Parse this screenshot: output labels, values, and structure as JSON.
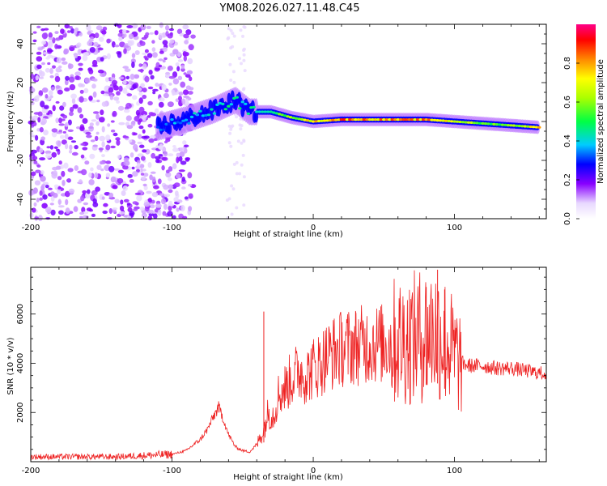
{
  "title": "YM08.2026.027.11.48.C45",
  "colors": {
    "snr_line": "#ee2222",
    "frame": "#000000",
    "background": "#ffffff"
  },
  "chart_data": [
    {
      "type": "heatmap",
      "name": "spectrogram",
      "xlabel": "Height of straight line (km)",
      "ylabel": "Frequency (Hz)",
      "xlim": [
        -200,
        165
      ],
      "ylim": [
        -50,
        50
      ],
      "x_ticks": [
        -200,
        -100,
        0,
        100
      ],
      "x_tick_labels": [
        "-200",
        "-100",
        "0",
        "100"
      ],
      "y_ticks": [
        -40,
        -20,
        0,
        20,
        40
      ],
      "y_tick_labels": [
        "-40",
        "-20",
        "0",
        "20",
        "40"
      ],
      "colorbar": {
        "label": "Normalized spectral amplitude",
        "range": [
          0,
          1
        ],
        "ticks": [
          0.0,
          0.2,
          0.4,
          0.6,
          0.8
        ],
        "tick_labels": [
          "0.0",
          "0.2",
          "0.4",
          "0.6",
          "0.8"
        ]
      },
      "ridge": [
        {
          "x": -110,
          "freq": -3,
          "amp": 0.3
        },
        {
          "x": -90,
          "freq": 1,
          "amp": 0.4
        },
        {
          "x": -70,
          "freq": 6,
          "amp": 0.42
        },
        {
          "x": -55,
          "freq": 11,
          "amp": 0.45
        },
        {
          "x": -45,
          "freq": 5,
          "amp": 0.45
        },
        {
          "x": -30,
          "freq": 5,
          "amp": 0.5
        },
        {
          "x": -15,
          "freq": 2,
          "amp": 0.6
        },
        {
          "x": 0,
          "freq": 0,
          "amp": 0.75
        },
        {
          "x": 20,
          "freq": 1,
          "amp": 0.85
        },
        {
          "x": 50,
          "freq": 1,
          "amp": 0.8
        },
        {
          "x": 80,
          "freq": 1,
          "amp": 0.8
        },
        {
          "x": 100,
          "freq": 0,
          "amp": 0.7
        },
        {
          "x": 120,
          "freq": -1,
          "amp": 0.55
        },
        {
          "x": 140,
          "freq": -2,
          "amp": 0.6
        },
        {
          "x": 160,
          "freq": -3,
          "amp": 0.75
        }
      ]
    },
    {
      "type": "line",
      "name": "snr",
      "xlabel": "Height of straight line (km)",
      "ylabel": "SNR (10 * v/v)",
      "xlim": [
        -200,
        165
      ],
      "ylim": [
        0,
        7900
      ],
      "x_ticks": [
        -200,
        -100,
        0,
        100
      ],
      "x_tick_labels": [
        "-200",
        "-100",
        "0",
        "100"
      ],
      "y_ticks": [
        2000,
        4000,
        6000
      ],
      "y_tick_labels": [
        "2000",
        "4000",
        "6000"
      ],
      "series": [
        {
          "name": "SNR",
          "x": [
            -200,
            -180,
            -160,
            -140,
            -120,
            -100,
            -90,
            -80,
            -75,
            -70,
            -67,
            -64,
            -60,
            -55,
            -50,
            -45,
            -40,
            -35,
            -32,
            -28,
            -25,
            -20,
            -15,
            -10,
            -5,
            0,
            5,
            10,
            20,
            30,
            40,
            50,
            60,
            70,
            80,
            88,
            95,
            100,
            105,
            110,
            120,
            130,
            140,
            150,
            160,
            165
          ],
          "y": [
            200,
            200,
            200,
            200,
            250,
            300,
            450,
            900,
            1300,
            1900,
            2200,
            1800,
            1100,
            600,
            450,
            400,
            700,
            1300,
            2000,
            1900,
            2700,
            3000,
            3400,
            3700,
            3500,
            3800,
            4000,
            4300,
            4600,
            4700,
            4800,
            4800,
            4900,
            5000,
            5200,
            5300,
            4800,
            4300,
            4000,
            3900,
            3900,
            3800,
            3800,
            3700,
            3600,
            3600
          ]
        }
      ],
      "spikes": [
        {
          "x": -35,
          "y": 6100
        },
        {
          "x": 80,
          "y": 7100
        },
        {
          "x": 88,
          "y": 7800
        },
        {
          "x": 93,
          "y": 7000
        }
      ]
    }
  ]
}
